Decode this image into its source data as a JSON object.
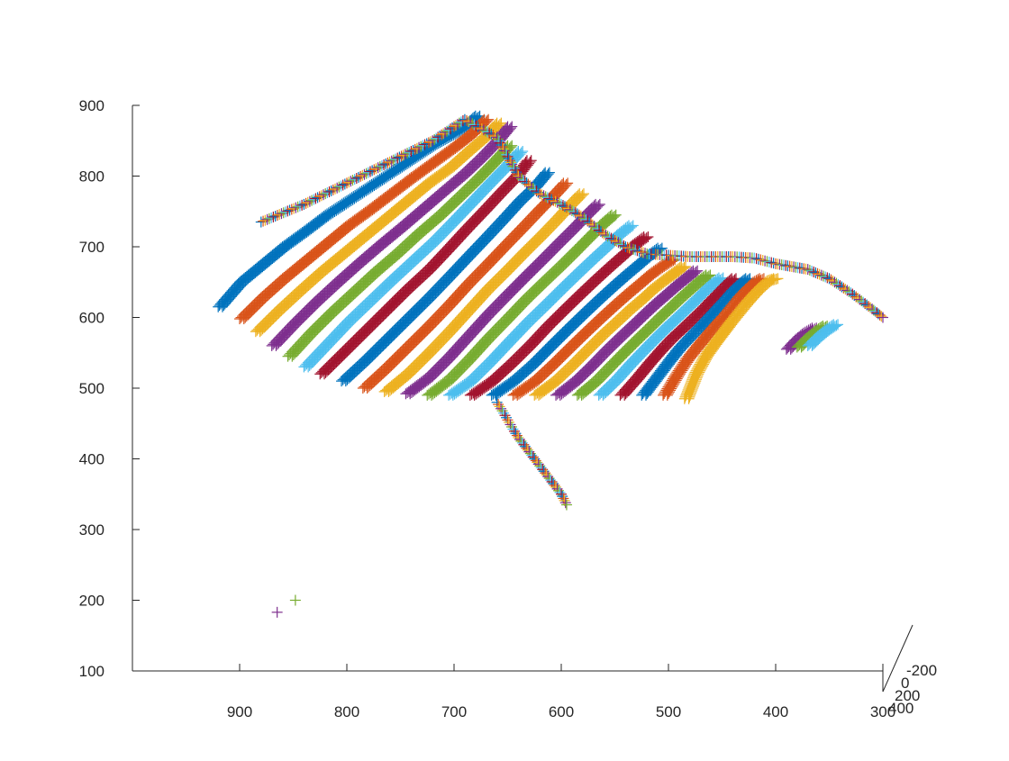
{
  "chart_data": {
    "type": "scatter",
    "title": "",
    "xlabel": "",
    "ylabel": "",
    "zlabel": "",
    "marker": "+",
    "grid": false,
    "legend": "none",
    "view": "3d",
    "xlim": [
      300,
      1000
    ],
    "ylim": [
      -200,
      400
    ],
    "zlim": [
      100,
      900
    ],
    "x_ticks": [
      "900",
      "800",
      "700",
      "600",
      "500",
      "400",
      "300"
    ],
    "y_ticks": [
      "-200",
      "0",
      "200",
      "400"
    ],
    "z_ticks": [
      "900",
      "800",
      "700",
      "600",
      "500",
      "400",
      "300",
      "200",
      "100"
    ],
    "colors": [
      "#0072BD",
      "#D95319",
      "#EDB120",
      "#7E2F8E",
      "#77AC30",
      "#4DBEEE",
      "#A2142F"
    ],
    "strands": [
      {
        "x": [
          920,
          900,
          880,
          860,
          840,
          820,
          800,
          780,
          760,
          740,
          720,
          700,
          690,
          680
        ],
        "z": [
          615,
          650,
          675,
          700,
          722,
          745,
          765,
          785,
          805,
          825,
          845,
          862,
          872,
          885
        ]
      },
      {
        "x": [
          900,
          880,
          860,
          840,
          820,
          800,
          780,
          760,
          740,
          720,
          700,
          685,
          672
        ],
        "z": [
          598,
          628,
          655,
          680,
          705,
          730,
          752,
          775,
          798,
          820,
          842,
          860,
          880
        ]
      },
      {
        "x": [
          885,
          865,
          845,
          825,
          805,
          785,
          765,
          745,
          725,
          705,
          688,
          672,
          660
        ],
        "z": [
          580,
          610,
          638,
          665,
          690,
          715,
          740,
          765,
          790,
          812,
          835,
          856,
          875
        ]
      },
      {
        "x": [
          870,
          850,
          830,
          810,
          790,
          770,
          750,
          730,
          710,
          692,
          676,
          662,
          650
        ],
        "z": [
          560,
          592,
          622,
          650,
          677,
          703,
          728,
          754,
          780,
          803,
          826,
          848,
          870
        ]
      },
      {
        "x": [
          855,
          835,
          815,
          795,
          775,
          755,
          735,
          715,
          697,
          680,
          664,
          650
        ],
        "z": [
          545,
          578,
          608,
          636,
          664,
          690,
          718,
          744,
          770,
          795,
          820,
          843
        ]
      },
      {
        "x": [
          840,
          820,
          800,
          780,
          760,
          740,
          720,
          702,
          685,
          668,
          652,
          640
        ],
        "z": [
          530,
          562,
          594,
          623,
          652,
          680,
          708,
          736,
          763,
          790,
          815,
          835
        ]
      },
      {
        "x": [
          825,
          805,
          785,
          765,
          745,
          725,
          707,
          690,
          673,
          657,
          643,
          632
        ],
        "z": [
          520,
          550,
          580,
          610,
          640,
          668,
          697,
          725,
          752,
          778,
          800,
          822
        ]
      },
      {
        "x": [
          805,
          785,
          765,
          745,
          725,
          706,
          688,
          671,
          655,
          640,
          626,
          615
        ],
        "z": [
          510,
          538,
          568,
          598,
          628,
          658,
          687,
          714,
          740,
          765,
          785,
          805
        ]
      },
      {
        "x": [
          785,
          765,
          745,
          725,
          706,
          688,
          670,
          653,
          637,
          622,
          609,
          598
        ],
        "z": [
          500,
          528,
          558,
          588,
          618,
          648,
          676,
          703,
          728,
          752,
          772,
          790
        ]
      },
      {
        "x": [
          765,
          745,
          725,
          706,
          688,
          670,
          652,
          636,
          620,
          606,
          594,
          583
        ],
        "z": [
          495,
          520,
          550,
          580,
          610,
          640,
          667,
          692,
          716,
          738,
          758,
          775
        ]
      },
      {
        "x": [
          745,
          725,
          706,
          688,
          670,
          652,
          635,
          619,
          604,
          590,
          578,
          568
        ],
        "z": [
          492,
          515,
          544,
          574,
          604,
          632,
          658,
          682,
          705,
          726,
          745,
          760
        ]
      },
      {
        "x": [
          725,
          706,
          688,
          670,
          652,
          635,
          618,
          602,
          588,
          575,
          563,
          553
        ],
        "z": [
          490,
          512,
          540,
          570,
          598,
          625,
          650,
          673,
          694,
          714,
          732,
          745
        ]
      },
      {
        "x": [
          705,
          686,
          668,
          650,
          633,
          616,
          600,
          585,
          571,
          558,
          547,
          537
        ],
        "z": [
          490,
          510,
          537,
          566,
          593,
          618,
          642,
          664,
          684,
          702,
          718,
          730
        ]
      },
      {
        "x": [
          685,
          666,
          648,
          630,
          614,
          598,
          583,
          569,
          556,
          544,
          533,
          523
        ],
        "z": [
          490,
          510,
          535,
          562,
          588,
          612,
          634,
          654,
          672,
          688,
          703,
          714
        ]
      },
      {
        "x": [
          665,
          646,
          628,
          611,
          595,
          580,
          566,
          553,
          541,
          530,
          520,
          510
        ],
        "z": [
          490,
          510,
          534,
          560,
          584,
          606,
          626,
          644,
          660,
          674,
          687,
          698
        ]
      },
      {
        "x": [
          645,
          626,
          609,
          593,
          578,
          564,
          551,
          539,
          528,
          518,
          508,
          498
        ],
        "z": [
          490,
          510,
          534,
          558,
          580,
          600,
          618,
          634,
          648,
          661,
          672,
          682
        ]
      },
      {
        "x": [
          625,
          607,
          591,
          576,
          562,
          549,
          537,
          526,
          516,
          506,
          497,
          488
        ],
        "z": [
          490,
          510,
          533,
          556,
          577,
          595,
          612,
          626,
          640,
          652,
          662,
          672
        ]
      },
      {
        "x": [
          605,
          588,
          573,
          559,
          546,
          534,
          523,
          513,
          503,
          494,
          485,
          477
        ],
        "z": [
          490,
          510,
          532,
          554,
          573,
          590,
          606,
          620,
          633,
          645,
          656,
          666
        ]
      },
      {
        "x": [
          585,
          569,
          555,
          542,
          530,
          519,
          509,
          499,
          490,
          481,
          473,
          465
        ],
        "z": [
          490,
          510,
          532,
          552,
          570,
          586,
          601,
          615,
          628,
          640,
          651,
          660
        ]
      },
      {
        "x": [
          565,
          550,
          537,
          525,
          514,
          504,
          494,
          485,
          476,
          468,
          460,
          453
        ],
        "z": [
          490,
          512,
          534,
          553,
          570,
          585,
          599,
          612,
          625,
          637,
          648,
          656
        ]
      },
      {
        "x": [
          545,
          531,
          519,
          508,
          498,
          488,
          479,
          470,
          462,
          454,
          447,
          441
        ],
        "z": [
          490,
          514,
          536,
          555,
          571,
          585,
          598,
          611,
          624,
          636,
          647,
          655
        ]
      },
      {
        "x": [
          525,
          512,
          501,
          491,
          481,
          472,
          464,
          456,
          448,
          441,
          434,
          428
        ],
        "z": [
          490,
          516,
          538,
          557,
          573,
          587,
          600,
          613,
          626,
          638,
          648,
          655
        ]
      },
      {
        "x": [
          505,
          494,
          484,
          474,
          465,
          457,
          449,
          442,
          435,
          428,
          421,
          415
        ],
        "z": [
          490,
          518,
          541,
          560,
          576,
          590,
          603,
          616,
          629,
          640,
          650,
          655
        ]
      },
      {
        "x": [
          485,
          476,
          467,
          458,
          450,
          443,
          436,
          429,
          422,
          415,
          408,
          402
        ],
        "z": [
          485,
          520,
          545,
          564,
          580,
          594,
          607,
          620,
          632,
          643,
          652,
          655
        ]
      },
      {
        "x": [
          390,
          382,
          374,
          366
        ],
        "z": [
          555,
          568,
          578,
          585
        ]
      },
      {
        "x": [
          380,
          372,
          364,
          356
        ],
        "z": [
          558,
          570,
          580,
          588
        ]
      },
      {
        "x": [
          370,
          362,
          354,
          346
        ],
        "z": [
          560,
          572,
          582,
          590
        ]
      }
    ],
    "crest": {
      "x": [
        880,
        840,
        800,
        760,
        720,
        690,
        660,
        640,
        620,
        600,
        580,
        560,
        540,
        520,
        500,
        480,
        460,
        440,
        420,
        400,
        385,
        370,
        350,
        330,
        310,
        300
      ],
      "z": [
        735,
        760,
        790,
        820,
        850,
        880,
        855,
        800,
        775,
        760,
        742,
        718,
        700,
        690,
        688,
        686,
        686,
        686,
        684,
        676,
        672,
        668,
        655,
        635,
        612,
        600
      ]
    },
    "outliers": [
      {
        "x": [
          660,
          655,
          650,
          645,
          640,
          635,
          630,
          625,
          620,
          615,
          610,
          605,
          600,
          595
        ],
        "z": [
          480,
          468,
          455,
          442,
          430,
          420,
          410,
          400,
          390,
          380,
          370,
          360,
          350,
          335
        ]
      },
      {
        "x": [
          865,
          848
        ],
        "z": [
          183,
          200
        ]
      }
    ]
  }
}
